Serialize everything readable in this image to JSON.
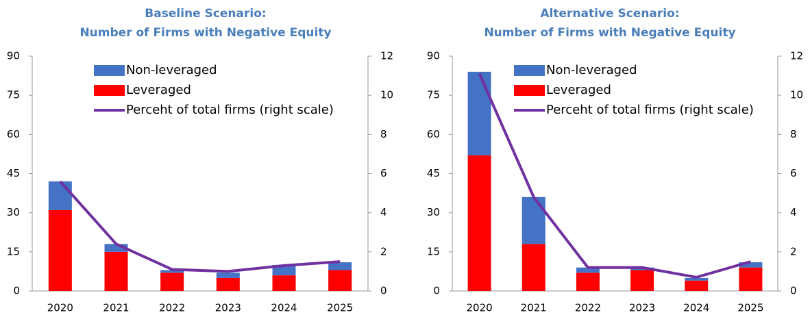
{
  "chart_data": [
    {
      "type": "bar",
      "title": "Baseline Scenario:",
      "subtitle": "Number of Firms with Negative Equity",
      "categories": [
        "2020",
        "2021",
        "2022",
        "2023",
        "2024",
        "2025"
      ],
      "series": [
        {
          "name": "Non-leveraged",
          "type": "bar",
          "color": "#4472c4",
          "values": [
            11,
            3,
            1,
            2,
            4,
            3
          ]
        },
        {
          "name": "Leveraged",
          "type": "bar",
          "color": "#ff0000",
          "values": [
            31,
            15,
            7,
            5,
            6,
            8
          ]
        },
        {
          "name": "Perceht of total firms (right scale)",
          "type": "line",
          "axis": "y2",
          "color": "#7030a0",
          "values": [
            5.6,
            2.4,
            1.1,
            1.0,
            1.3,
            1.5
          ]
        }
      ],
      "ylim": [
        0,
        90
      ],
      "yticks": [
        0,
        15,
        30,
        45,
        60,
        75,
        90
      ],
      "y2lim": [
        0,
        12
      ],
      "y2ticks": [
        0,
        2,
        4,
        6,
        8,
        10,
        12
      ]
    },
    {
      "type": "bar",
      "title": "Alternative Scenario:",
      "subtitle": "Number of Firms with Negative Equity",
      "categories": [
        "2020",
        "2021",
        "2022",
        "2023",
        "2024",
        "2025"
      ],
      "series": [
        {
          "name": "Non-leveraged",
          "type": "bar",
          "color": "#4472c4",
          "values": [
            32,
            18,
            2,
            1,
            1,
            2
          ]
        },
        {
          "name": "Leveraged",
          "type": "bar",
          "color": "#ff0000",
          "values": [
            52,
            18,
            7,
            8,
            4,
            9
          ]
        },
        {
          "name": "Perceht of total firms (right scale)",
          "type": "line",
          "axis": "y2",
          "color": "#7030a0",
          "values": [
            11.1,
            4.8,
            1.2,
            1.2,
            0.7,
            1.5
          ]
        }
      ],
      "ylim": [
        0,
        90
      ],
      "yticks": [
        0,
        15,
        30,
        45,
        60,
        75,
        90
      ],
      "y2lim": [
        0,
        12
      ],
      "y2ticks": [
        0,
        2,
        4,
        6,
        8,
        10,
        12
      ]
    }
  ]
}
